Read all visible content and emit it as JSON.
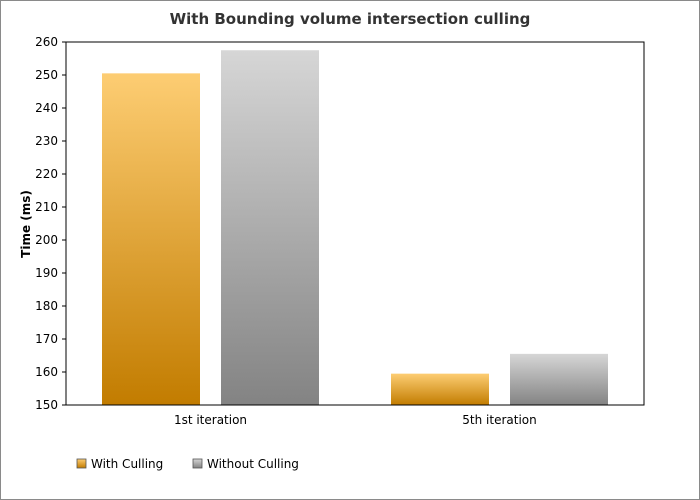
{
  "chart_data": {
    "type": "bar",
    "title": "With Bounding volume intersection culling",
    "xlabel": "",
    "ylabel": "Time (ms)",
    "categories": [
      "1st iteration",
      "5th iteration"
    ],
    "series": [
      {
        "name": "With Culling",
        "values": [
          250.5,
          159.5
        ],
        "color": "#e9a93a"
      },
      {
        "name": "Without Culling",
        "values": [
          257.5,
          165.5
        ],
        "color": "#b5b5b5"
      }
    ],
    "ylim": [
      150,
      260
    ],
    "yticks": [
      150,
      160,
      170,
      180,
      190,
      200,
      210,
      220,
      230,
      240,
      250,
      260
    ],
    "grid": false,
    "legend_position": "bottom-left"
  }
}
